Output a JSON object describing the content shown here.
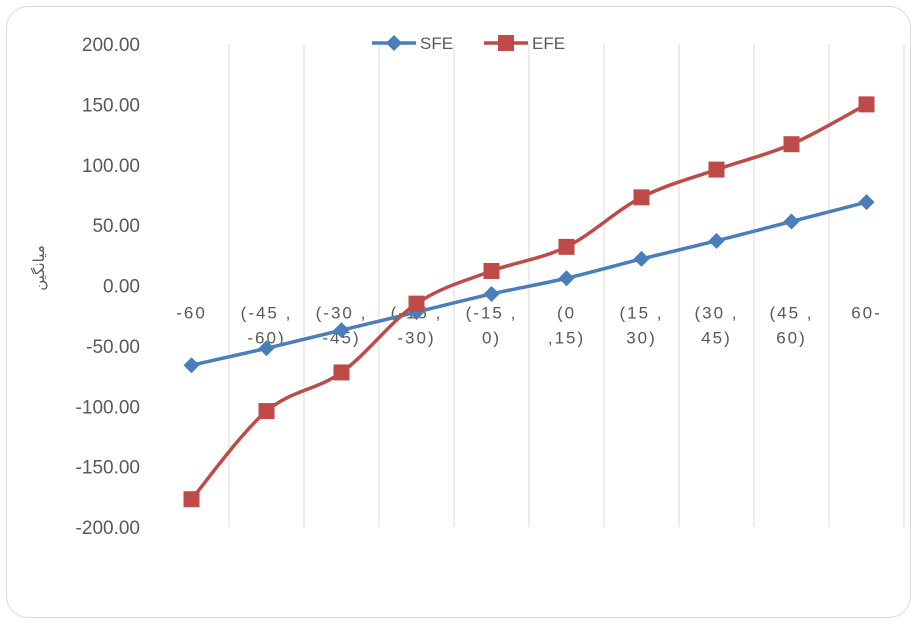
{
  "chart_data": {
    "type": "line",
    "title": "",
    "xlabel": "",
    "ylabel": "میانگین",
    "ylim": [
      -200,
      200
    ],
    "y_ticks": [
      "200.00",
      "150.00",
      "100.00",
      "50.00",
      "0.00",
      "-50.00",
      "-100.00",
      "-150.00",
      "-200.00"
    ],
    "y_tick_values": [
      200,
      150,
      100,
      50,
      0,
      -50,
      -100,
      -150,
      -200
    ],
    "categories": [
      [
        "-60"
      ],
      [
        "(-45 ,",
        "-60)"
      ],
      [
        "(-30 ,",
        "-45)"
      ],
      [
        "(-15 ,",
        "-30)"
      ],
      [
        "(-15 ,",
        "0)"
      ],
      [
        "(0",
        ",15)"
      ],
      [
        "(15 ,",
        "30)"
      ],
      [
        "(30 ,",
        "45)"
      ],
      [
        "(45 ,",
        "60)"
      ],
      [
        "60-"
      ]
    ],
    "grid": "vertical",
    "legend": "top",
    "series": [
      {
        "name": "SFE",
        "color": "#4a7ebb",
        "marker": "diamond",
        "values": [
          -66,
          -52,
          -37,
          -22,
          -7,
          6,
          22,
          37,
          53,
          69
        ]
      },
      {
        "name": "EFE",
        "color": "#be4b48",
        "marker": "square",
        "values": [
          -177,
          -104,
          -72,
          -15,
          12,
          32,
          73,
          96,
          117,
          150
        ]
      }
    ]
  }
}
